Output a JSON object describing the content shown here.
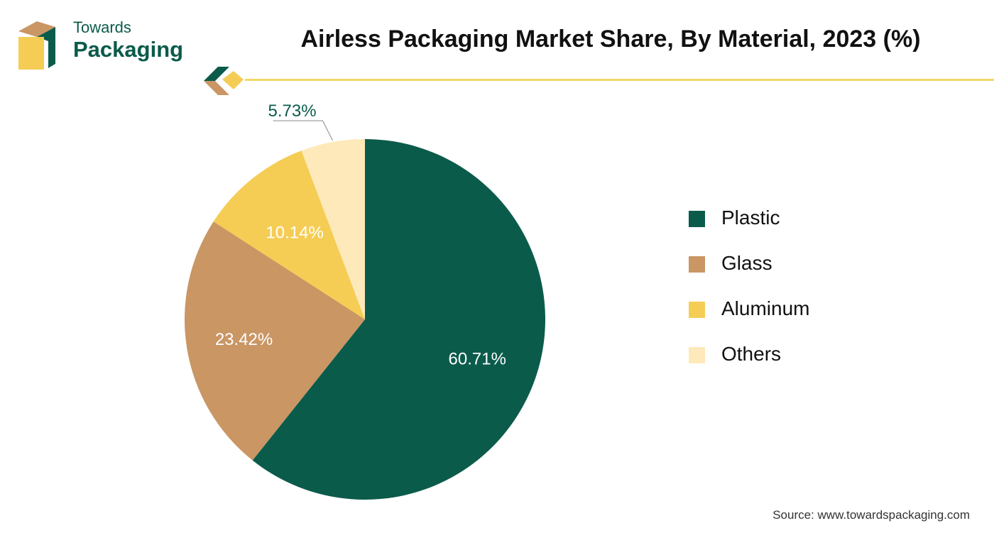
{
  "logo": {
    "line1": "Towards",
    "line2": "Packaging"
  },
  "chart_data": {
    "type": "pie",
    "title": "Airless Packaging Market Share, By Material, 2023 (%)",
    "categories": [
      "Plastic",
      "Glass",
      "Aluminum",
      "Others"
    ],
    "values": [
      60.71,
      23.42,
      10.14,
      5.73
    ],
    "data_labels": [
      "60.71%",
      "23.42%",
      "10.14%",
      "5.73%"
    ],
    "colors": [
      "#0b5b4b",
      "#c99664",
      "#f5cd55",
      "#fde9b9"
    ],
    "legend_position": "right",
    "start": "12 o'clock, clockwise"
  },
  "source": "Source: www.towardspackaging.com"
}
